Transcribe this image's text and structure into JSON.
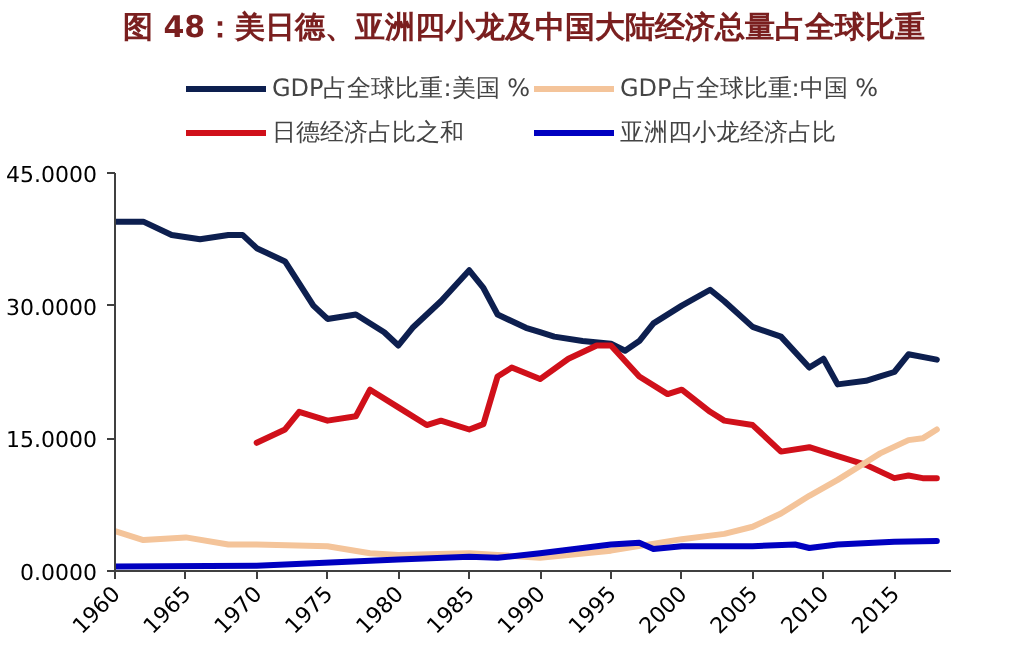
{
  "chart_data": {
    "type": "line",
    "title": "图 48：美日德、亚洲四小龙及中国大陆经济总量占全球比重",
    "xlim": [
      1960,
      2019
    ],
    "xticks": [
      1960,
      1965,
      1970,
      1975,
      1980,
      1985,
      1990,
      1995,
      2000,
      2005,
      2010,
      2015
    ],
    "ylim": [
      0,
      45
    ],
    "yticks": [
      {
        "value": 0,
        "label": "0.0000"
      },
      {
        "value": 15,
        "label": "15.0000"
      },
      {
        "value": 30,
        "label": "30.0000"
      },
      {
        "value": 45,
        "label": "45.0000"
      }
    ],
    "grid": false,
    "legend": "top",
    "line_style": "solid",
    "series": [
      {
        "name": "GDP占全球比重:美国 %",
        "color": "#0d1f4f",
        "x": [
          1960,
          1962,
          1964,
          1966,
          1968,
          1969,
          1970,
          1972,
          1974,
          1975,
          1977,
          1979,
          1980,
          1981,
          1983,
          1985,
          1986,
          1987,
          1989,
          1990,
          1991,
          1993,
          1995,
          1996,
          1997,
          1998,
          2000,
          2002,
          2003,
          2005,
          2007,
          2009,
          2010,
          2011,
          2013,
          2014,
          2015,
          2016,
          2018
        ],
        "values": [
          39.5,
          39.5,
          38,
          37.5,
          38,
          38,
          36.5,
          35,
          30,
          28.5,
          29,
          27,
          25.5,
          27.5,
          30.5,
          34,
          32,
          29,
          27.5,
          27,
          26.5,
          26,
          25.7,
          24.9,
          26,
          28,
          30,
          31.8,
          30.5,
          27.6,
          26.5,
          23,
          24,
          21.1,
          21.5,
          22,
          22.5,
          24.5,
          23.9
        ]
      },
      {
        "name": "日德经济占比之和",
        "color": "#d0101a",
        "x": [
          1970,
          1972,
          1973,
          1975,
          1977,
          1978,
          1980,
          1982,
          1983,
          1985,
          1986,
          1987,
          1988,
          1990,
          1992,
          1994,
          1995,
          1997,
          1999,
          2000,
          2002,
          2003,
          2005,
          2007,
          2009,
          2011,
          2013,
          2015,
          2016,
          2017,
          2018
        ],
        "values": [
          14.5,
          16,
          18,
          17,
          17.5,
          20.5,
          18.5,
          16.5,
          17,
          16,
          16.6,
          22,
          23,
          21.7,
          24,
          25.5,
          25.5,
          22,
          20,
          20.5,
          18,
          17,
          16.5,
          13.5,
          14,
          13,
          12,
          10.5,
          10.8,
          10.5,
          10.5
        ]
      },
      {
        "name": "GDP占全球比重:中国 %",
        "color": "#f4c49a",
        "x": [
          1960,
          1962,
          1965,
          1968,
          1970,
          1975,
          1978,
          1980,
          1985,
          1990,
          1995,
          2000,
          2003,
          2005,
          2007,
          2009,
          2011,
          2013,
          2014,
          2016,
          2017,
          2018
        ],
        "values": [
          4.5,
          3.5,
          3.8,
          3,
          3,
          2.8,
          2,
          1.8,
          2,
          1.5,
          2.3,
          3.6,
          4.2,
          5,
          6.5,
          8.5,
          10.3,
          12.3,
          13.3,
          14.8,
          15,
          16
        ]
      },
      {
        "name": "亚洲四小龙经济占比",
        "color": "#0000c0",
        "x": [
          1960,
          1970,
          1980,
          1985,
          1987,
          1990,
          1995,
          1997,
          1998,
          2000,
          2005,
          2008,
          2009,
          2011,
          2015,
          2018
        ],
        "values": [
          0.5,
          0.6,
          1.3,
          1.6,
          1.5,
          2,
          3,
          3.2,
          2.5,
          2.8,
          2.8,
          3,
          2.6,
          3,
          3.3,
          3.4
        ]
      }
    ]
  }
}
